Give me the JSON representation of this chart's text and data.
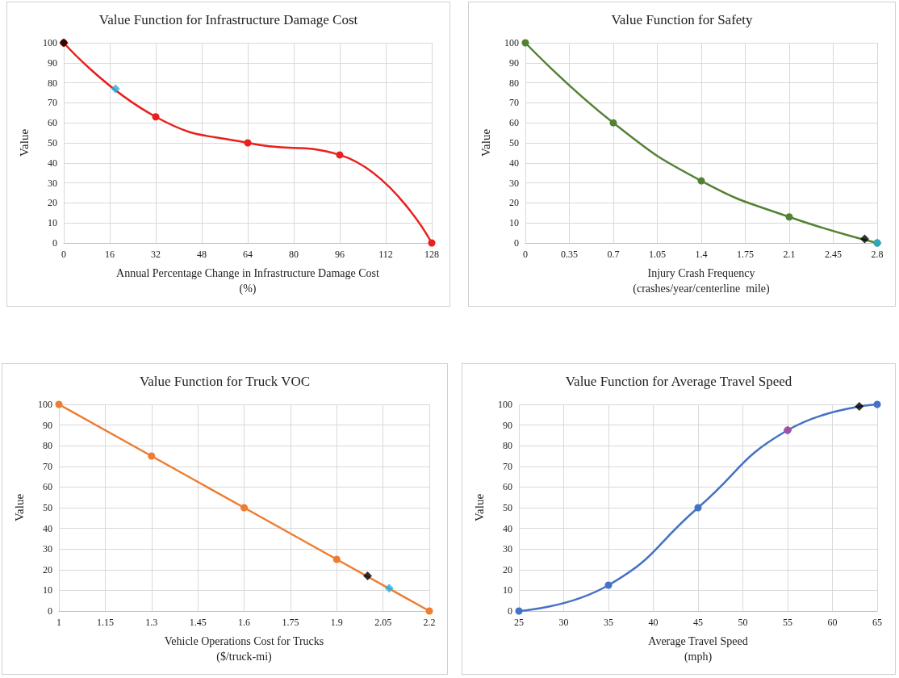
{
  "chart_data": [
    {
      "type": "line",
      "title": "Value Function for Infrastructure Damage Cost",
      "xlabel": "Annual Percentage Change in Infrastructure Damage Cost\n(%)",
      "ylabel": "Value",
      "xlim": [
        0,
        128
      ],
      "xticks": [
        0,
        16,
        32,
        48,
        64,
        80,
        96,
        112,
        128
      ],
      "ylim": [
        0,
        100
      ],
      "yticks": [
        0,
        10,
        20,
        30,
        40,
        50,
        60,
        70,
        80,
        90,
        100
      ],
      "grid": true,
      "series": [
        {
          "color": "#e8201e",
          "marker": "circle",
          "x": [
            0,
            32,
            64,
            96,
            128
          ],
          "values": [
            100,
            63,
            50,
            44,
            0
          ]
        },
        {
          "type": "scatter",
          "color": "#000000",
          "marker": "diamond",
          "x": [
            0
          ],
          "values": [
            100
          ]
        },
        {
          "type": "scatter",
          "color": "#1fb0e6",
          "marker": "diamond",
          "x": [
            18
          ],
          "values": [
            77
          ]
        }
      ]
    },
    {
      "type": "line",
      "title": "Value Function for Safety",
      "xlabel": "Injury Crash Frequency\n(crashes/year/centerline  mile)",
      "ylabel": "Value",
      "xlim": [
        0,
        2.8
      ],
      "xticks": [
        0,
        0.35,
        0.7,
        1.05,
        1.4,
        1.75,
        2.1,
        2.45,
        2.8
      ],
      "ylim": [
        0,
        100
      ],
      "yticks": [
        0,
        10,
        20,
        30,
        40,
        50,
        60,
        70,
        80,
        90,
        100
      ],
      "grid": true,
      "series": [
        {
          "color": "#548235",
          "marker": "circle",
          "x": [
            0,
            0.7,
            1.4,
            2.1,
            2.8
          ],
          "values": [
            100,
            60,
            31,
            13,
            0
          ]
        },
        {
          "type": "scatter",
          "color": "#000000",
          "marker": "diamond",
          "x": [
            2.7
          ],
          "values": [
            2
          ]
        },
        {
          "type": "scatter",
          "color": "#1fb0e6",
          "marker": "diamond",
          "x": [
            2.8
          ],
          "values": [
            0
          ]
        }
      ]
    },
    {
      "type": "line",
      "title": "Value Function for Truck VOC",
      "xlabel": "Vehicle Operations Cost for Trucks\n($/truck-mi)",
      "ylabel": "Value",
      "xlim": [
        1,
        2.2
      ],
      "xticks": [
        1,
        1.15,
        1.3,
        1.45,
        1.6,
        1.75,
        1.9,
        2.05,
        2.2
      ],
      "ylim": [
        0,
        100
      ],
      "yticks": [
        0,
        10,
        20,
        30,
        40,
        50,
        60,
        70,
        80,
        90,
        100
      ],
      "grid": true,
      "series": [
        {
          "color": "#ed7d31",
          "marker": "circle",
          "x": [
            1,
            1.3,
            1.6,
            1.9,
            2.2
          ],
          "values": [
            100,
            75,
            50,
            25,
            0
          ]
        },
        {
          "type": "scatter",
          "color": "#000000",
          "marker": "diamond",
          "x": [
            2.0
          ],
          "values": [
            17
          ]
        },
        {
          "type": "scatter",
          "color": "#1fb0e6",
          "marker": "diamond",
          "x": [
            2.07
          ],
          "values": [
            11
          ]
        }
      ]
    },
    {
      "type": "line",
      "title": "Value Function for Average Travel Speed",
      "xlabel": "Average Travel Speed\n(mph)",
      "ylabel": "Value",
      "xlim": [
        25,
        65
      ],
      "xticks": [
        25,
        30,
        35,
        40,
        45,
        50,
        55,
        60,
        65
      ],
      "ylim": [
        0,
        100
      ],
      "yticks": [
        0,
        10,
        20,
        30,
        40,
        50,
        60,
        70,
        80,
        90,
        100
      ],
      "grid": true,
      "series": [
        {
          "color": "#4472c4",
          "marker": "circle",
          "x": [
            25,
            35,
            45,
            55,
            65
          ],
          "values": [
            0,
            12.5,
            50,
            87.5,
            100
          ]
        },
        {
          "type": "scatter",
          "color": "#000000",
          "marker": "diamond",
          "x": [
            63
          ],
          "values": [
            99
          ]
        },
        {
          "type": "scatter",
          "color": "#c5439b",
          "marker": "diamond",
          "x": [
            55
          ],
          "values": [
            87.5
          ]
        }
      ]
    }
  ]
}
